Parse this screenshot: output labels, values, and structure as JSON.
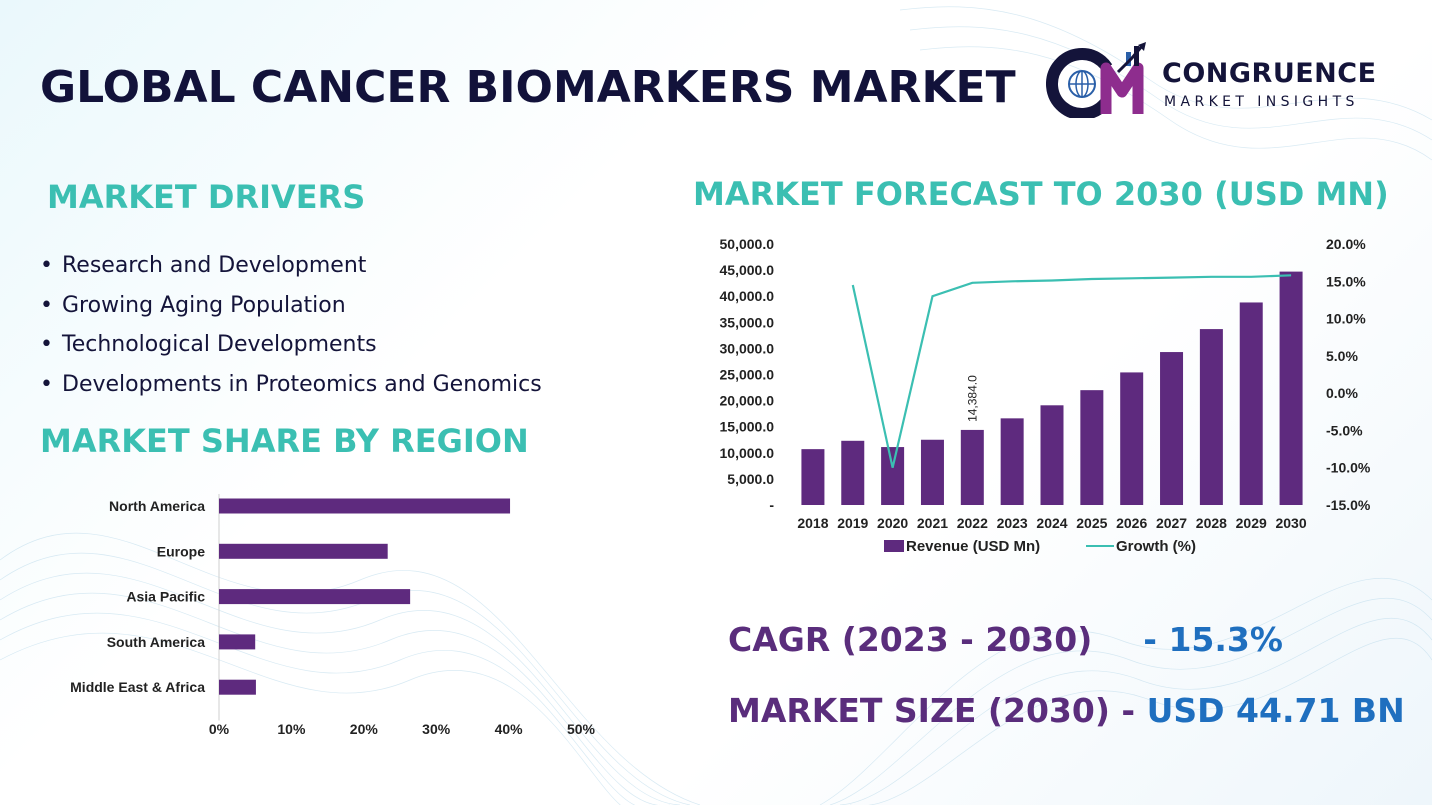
{
  "header": {
    "title": "GLOBAL CANCER BIOMARKERS MARKET"
  },
  "logo": {
    "name": "CONGRUENCE",
    "tagline": "MARKET INSIGHTS",
    "colors": {
      "dark": "#14143a",
      "accent": "#8e2d8e",
      "blue": "#2a5fa8"
    }
  },
  "drivers": {
    "title": "MARKET DRIVERS",
    "items": [
      "Research and Development",
      "Growing Aging Population",
      "Technological Developments",
      "Developments in Proteomics and Genomics"
    ]
  },
  "kpis": {
    "cagr_label": "CAGR (2023 - 2030)",
    "cagr_value": "- 15.3%",
    "size_label": "MARKET SIZE (2030) -",
    "size_value": "USD 44.71 BN"
  },
  "colors": {
    "bar": "#5e2a7e",
    "line": "#3bbfb2",
    "section_title": "#3bbfb2",
    "kpi_label": "#5a2d7c",
    "kpi_value": "#1f6fbf"
  },
  "chart_data": [
    {
      "type": "bar",
      "orientation": "horizontal",
      "title": "MARKET SHARE BY REGION",
      "categories": [
        "North America",
        "Europe",
        "Asia Pacific",
        "South America",
        "Middle East & Africa"
      ],
      "values": [
        40.2,
        23.3,
        26.4,
        5.0,
        5.1
      ],
      "xlim": [
        0,
        50
      ],
      "x_ticks": [
        "0%",
        "10%",
        "20%",
        "30%",
        "40%",
        "50%"
      ],
      "grid": false
    },
    {
      "type": "bar",
      "title": "MARKET FORECAST TO 2030 (USD MN)",
      "categories": [
        "2018",
        "2019",
        "2020",
        "2021",
        "2022",
        "2023",
        "2024",
        "2025",
        "2026",
        "2027",
        "2028",
        "2029",
        "2030"
      ],
      "series": [
        {
          "name": "Revenue (USD Mn)",
          "type": "bar",
          "axis": "left",
          "values": [
            10700,
            12300,
            11100,
            12500,
            14384,
            16600,
            19100,
            22000,
            25400,
            29300,
            33700,
            38800,
            44710
          ]
        },
        {
          "name": "Growth (%)",
          "type": "line",
          "axis": "right",
          "values": [
            null,
            14.5,
            -10.0,
            13.0,
            14.8,
            15.0,
            15.1,
            15.3,
            15.4,
            15.5,
            15.6,
            15.6,
            15.8
          ]
        }
      ],
      "data_labels": [
        {
          "category": "2022",
          "text": "14,384.0"
        }
      ],
      "y_left": {
        "lim": [
          0,
          50000
        ],
        "ticks": [
          "-",
          "5,000.0",
          "10,000.0",
          "15,000.0",
          "20,000.0",
          "25,000.0",
          "30,000.0",
          "35,000.0",
          "40,000.0",
          "45,000.0",
          "50,000.0"
        ]
      },
      "y_right": {
        "lim": [
          -15,
          20
        ],
        "ticks": [
          "-15.0%",
          "-10.0%",
          "-5.0%",
          "0.0%",
          "5.0%",
          "10.0%",
          "15.0%",
          "20.0%"
        ]
      },
      "legend": {
        "placement": "bottom",
        "entries": [
          "Revenue (USD Mn)",
          "Growth (%)"
        ]
      },
      "grid": false
    }
  ]
}
